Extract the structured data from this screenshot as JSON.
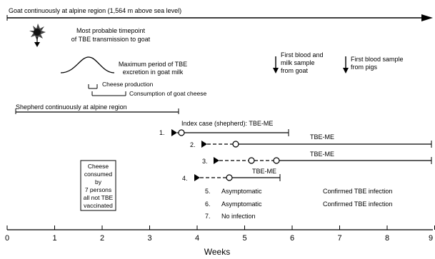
{
  "top_bar": {
    "label": "Goat continuously at alpine region (1,564 m above sea level)"
  },
  "tick_icon": "tick-icon",
  "transmission": {
    "lines": [
      "Most probable timepoint",
      "of TBE transmission to goat"
    ]
  },
  "excretion": {
    "lines": [
      "Maximum period of TBE",
      "excretion in goat milk"
    ]
  },
  "cheese_production": {
    "label": "Cheese production"
  },
  "cheese_consumption": {
    "label": "Consumption of goat cheese"
  },
  "first_sample_goat": {
    "lines": [
      "First blood and",
      "milk sample",
      "from goat"
    ]
  },
  "first_sample_pigs": {
    "lines": [
      "First blood sample",
      "from pigs"
    ]
  },
  "shepherd_bar": {
    "label": "Shepherd continuously at alpine region"
  },
  "cases": [
    {
      "num": "1.",
      "label": "Index case (shepherd): TBE-ME"
    },
    {
      "num": "2.",
      "label": "TBE-ME"
    },
    {
      "num": "3.",
      "label": "TBE-ME"
    },
    {
      "num": "4.",
      "label": "TBE-ME"
    }
  ],
  "outcomes": [
    {
      "num": "5.",
      "status": "Asymptomatic",
      "result": "Confirmed TBE infection"
    },
    {
      "num": "6.",
      "status": "Asymptomatic",
      "result": "Confirmed TBE infection"
    },
    {
      "num": "7.",
      "status": "No infection",
      "result": ""
    }
  ],
  "cheese_box": {
    "lines": [
      "Cheese",
      "consumed",
      "by",
      "7 persons",
      "all not TBE",
      "vaccinated"
    ]
  },
  "axis": {
    "ticks": [
      "0",
      "1",
      "2",
      "3",
      "4",
      "5",
      "6",
      "7",
      "8",
      "9"
    ],
    "label": "Weeks"
  }
}
